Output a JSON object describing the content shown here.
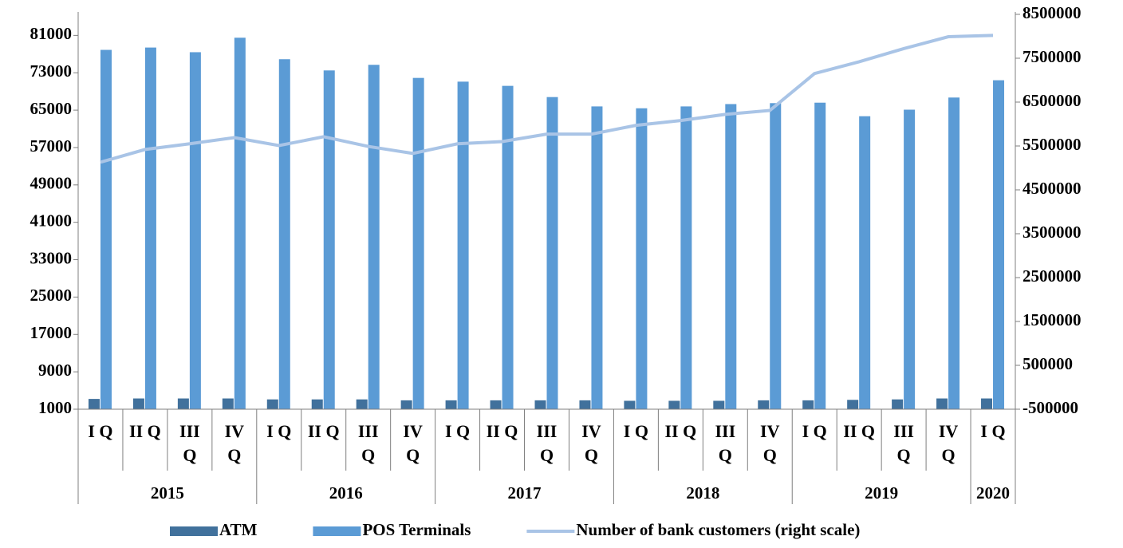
{
  "chart_data": {
    "type": "bar-line",
    "groups": [
      {
        "label": "2015",
        "categories": [
          "I Q",
          "II Q",
          "III Q",
          "IV Q"
        ]
      },
      {
        "label": "2016",
        "categories": [
          "I Q",
          "II Q",
          "III Q",
          "IV Q"
        ]
      },
      {
        "label": "2017",
        "categories": [
          "I Q",
          "II Q",
          "III Q",
          "IV Q"
        ]
      },
      {
        "label": "2018",
        "categories": [
          "I Q",
          "II Q",
          "III Q",
          "IV Q"
        ]
      },
      {
        "label": "2019",
        "categories": [
          "I Q",
          "II Q",
          "III Q",
          "IV Q"
        ]
      },
      {
        "label": "2020",
        "categories": [
          "I Q"
        ]
      }
    ],
    "series": [
      {
        "name": "ATM",
        "type": "bar",
        "color": "#41719c",
        "values": [
          3200,
          3300,
          3300,
          3300,
          3100,
          3100,
          3100,
          2900,
          2900,
          2900,
          2900,
          2900,
          2800,
          2800,
          2800,
          2900,
          2900,
          3000,
          3100,
          3300,
          3300
        ]
      },
      {
        "name": "POS Terminals",
        "type": "bar",
        "color": "#5b9bd5",
        "values": [
          77900,
          78400,
          77400,
          80500,
          75900,
          73500,
          74700,
          71900,
          71100,
          70200,
          67800,
          65800,
          65400,
          65800,
          66300,
          66500,
          66600,
          63700,
          65100,
          67700,
          71400
        ]
      },
      {
        "name": "Number of bank customers (right scale)",
        "type": "line",
        "axis": "y2",
        "color": "#a9c4e6",
        "values": [
          5130000,
          5420000,
          5550000,
          5690000,
          5510000,
          5710000,
          5490000,
          5330000,
          5550000,
          5600000,
          5770000,
          5770000,
          5970000,
          6080000,
          6220000,
          6310000,
          7150000,
          7420000,
          7720000,
          7990000,
          8020000
        ]
      }
    ],
    "ylim": [
      1000,
      85500
    ],
    "yticks": [
      1000,
      9000,
      17000,
      25000,
      33000,
      41000,
      49000,
      57000,
      65000,
      73000,
      81000
    ],
    "y2lim": [
      -500000,
      8500000
    ],
    "y2ticks": [
      -500000,
      500000,
      1500000,
      2500000,
      3500000,
      4500000,
      5500000,
      6500000,
      7500000,
      8500000
    ],
    "legend": "bottom"
  }
}
